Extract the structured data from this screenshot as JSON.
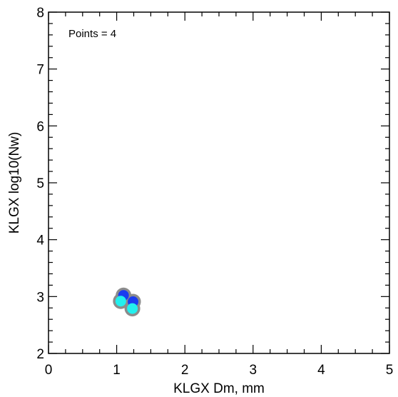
{
  "chart_data": {
    "type": "scatter",
    "title": "",
    "xlabel": "KLGX Dm, mm",
    "ylabel": "KLGX log10(Nw)",
    "xlim": [
      0,
      5
    ],
    "ylim": [
      2,
      8
    ],
    "xticks": [
      "0",
      "1",
      "2",
      "3",
      "4",
      "5"
    ],
    "yticks": [
      "2",
      "3",
      "4",
      "5",
      "6",
      "7",
      "8"
    ],
    "annotation": "Points = 4",
    "grid": false,
    "legend": "none",
    "points": [
      {
        "x": 1.1,
        "y": 3.02,
        "color": "#1a3cf0"
      },
      {
        "x": 1.24,
        "y": 2.91,
        "color": "#1a3cf0"
      },
      {
        "x": 1.06,
        "y": 2.92,
        "color": "#22f0ee"
      },
      {
        "x": 1.23,
        "y": 2.79,
        "color": "#22f0ee"
      }
    ],
    "marker_edge_color": "#8c8c8c"
  }
}
